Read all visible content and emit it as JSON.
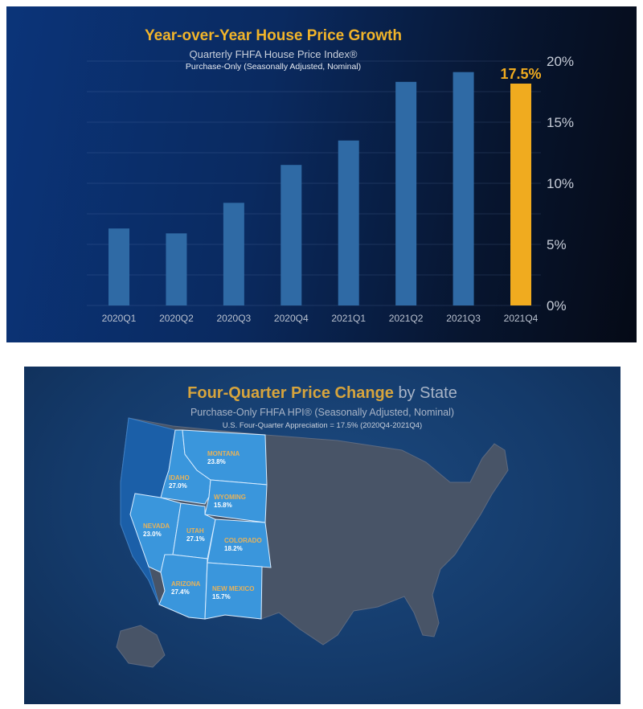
{
  "chart_data": [
    {
      "type": "bar",
      "title": "Year-over-Year House Price Growth",
      "subtitle": "Quarterly FHFA House Price Index®",
      "subtitle2": "Purchase-Only (Seasonally Adjusted, Nominal)",
      "categories": [
        "2020Q1",
        "2020Q2",
        "2020Q3",
        "2020Q4",
        "2021Q1",
        "2021Q2",
        "2021Q3",
        "2021Q4"
      ],
      "values": [
        6.3,
        5.9,
        8.4,
        11.5,
        13.5,
        18.3,
        19.1,
        17.5
      ],
      "highlight_index": 7,
      "data_label": "17.5%",
      "yticks": [
        "0%",
        "5%",
        "10%",
        "15%",
        "20%"
      ],
      "ylim": [
        0,
        20
      ],
      "colors": {
        "bar": "#2f6aa5",
        "highlight": "#f0ab1f"
      }
    },
    {
      "type": "map",
      "title_a": "Four-Quarter Price Change",
      "title_b": "by State",
      "subtitle": "Purchase-Only FHFA HPI® (Seasonally Adjusted, Nominal)",
      "note": "U.S. Four-Quarter Appreciation = 17.5% (2020Q4-2021Q4)",
      "states": [
        {
          "name": "MONTANA",
          "value": "23.8%"
        },
        {
          "name": "IDAHO",
          "value": "27.0%"
        },
        {
          "name": "WYOMING",
          "value": "15.8%"
        },
        {
          "name": "NEVADA",
          "value": "23.0%"
        },
        {
          "name": "UTAH",
          "value": "27.1%"
        },
        {
          "name": "COLORADO",
          "value": "18.2%"
        },
        {
          "name": "ARIZONA",
          "value": "27.4%"
        },
        {
          "name": "NEW MEXICO",
          "value": "15.7%"
        }
      ]
    }
  ]
}
